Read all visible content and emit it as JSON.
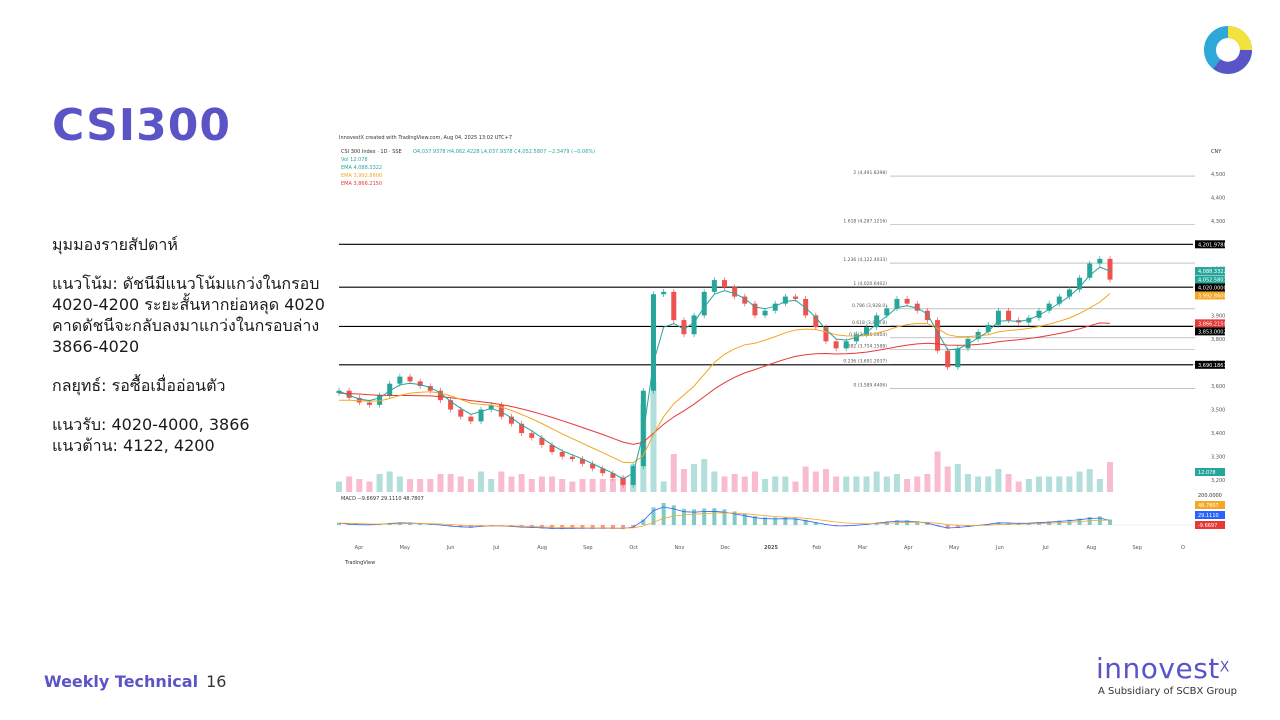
{
  "slide": {
    "title": "CSI300",
    "footer_label": "Weekly Technical",
    "page_number": "16",
    "brand_name": "innovest",
    "brand_sup": "X",
    "brand_sub": "A Subsidiary of SCBX Group"
  },
  "analysis": {
    "heading": "มุมมองรายสัปดาห์",
    "trend": "แนวโน้ม: ดัชนีมีแนวโน้มแกว่งในกรอบ 4020-4200 ระยะสั้นหากย่อหลุด 4020 คาดดัชนีจะกลับลงมาแกว่งในกรอบล่าง 3866-4020",
    "strategy": "กลยุทธ์: รอซื้อเมื่ออ่อนตัว",
    "support": "แนวรับ: 4020-4000, 3866",
    "resistance": "แนวต้าน: 4122, 4200"
  },
  "chart_data": {
    "type": "candlestick",
    "header": "InnovestX created with TradingView.com, Aug 04, 2025 13:02 UTC+7",
    "ohlc_line": "CSI 300 Index · 1D · SSE",
    "ohlc_values": "O4,037.9378 H4,062.4228 L4,037.9378 C4,052.5807 −2.3479 (−0.06%)",
    "indicators": [
      "Vol  12.078",
      "EMA  4,088.3322",
      "EMA  3,992.8600",
      "EMA  3,866.2150"
    ],
    "currency": "CNY",
    "watermark": "TradingView",
    "x_ticks": [
      "Apr",
      "May",
      "Jun",
      "Jul",
      "Aug",
      "Sep",
      "Oct",
      "Nov",
      "Dec",
      "2025",
      "Feb",
      "Mar",
      "Apr",
      "May",
      "Jun",
      "Jul",
      "Aug",
      "Sep",
      "O"
    ],
    "y_ticks": [
      4500,
      4400,
      4300,
      4200,
      4100,
      4000,
      3900,
      3800,
      3700,
      3600,
      3500,
      3400,
      3300,
      3200
    ],
    "ylim": [
      3150,
      4560
    ],
    "price_tags": [
      {
        "value": 4201.9788,
        "label": "4,201.9788",
        "color": "#000000"
      },
      {
        "value": 4088.3322,
        "label": "4,088.3322",
        "color": "#26a69a"
      },
      {
        "value": 4052.5807,
        "label": "4,052.5807",
        "color": "#26a69a"
      },
      {
        "value": 4020.0,
        "label": "4,020.0000",
        "color": "#000000"
      },
      {
        "value": 3992.86,
        "label": "3,992.8600",
        "color": "#f5a623"
      },
      {
        "value": 3866.215,
        "label": "3,866.2150",
        "color": "#e53935"
      },
      {
        "value": 3853.0,
        "label": "3,853.0002",
        "color": "#000000"
      },
      {
        "value": 3690.1861,
        "label": "3,690.1861",
        "color": "#000000"
      }
    ],
    "horizontal_levels": [
      4201.9788,
      4020.0,
      3853.0002,
      3690.1861
    ],
    "fibonacci": [
      {
        "ratio": "2 (4,491.8398)",
        "value": 4491.8398
      },
      {
        "ratio": "1.618 (4,287.1216)",
        "value": 4287.1216
      },
      {
        "ratio": "1.236 (4,122.4033)",
        "value": 4122.4033
      },
      {
        "ratio": "1 (4,020.6402)",
        "value": 4020.6402
      },
      {
        "ratio": "0.786 (3,928.0)",
        "value": 3928.0
      },
      {
        "ratio": "0.618 (3,855.8)",
        "value": 3855.8
      },
      {
        "ratio": "0.5 (3,805.0404)",
        "value": 3805.0404
      },
      {
        "ratio": "0.382 (3,754.1588)",
        "value": 3754.1588
      },
      {
        "ratio": "0.236 (3,691.2037)",
        "value": 3691.2037
      },
      {
        "ratio": "0 (3,589.4406)",
        "value": 3589.4406
      }
    ],
    "close_path": [
      3580,
      3550,
      3530,
      3520,
      3560,
      3610,
      3640,
      3620,
      3600,
      3580,
      3540,
      3500,
      3470,
      3450,
      3500,
      3520,
      3470,
      3440,
      3400,
      3380,
      3350,
      3320,
      3300,
      3290,
      3270,
      3250,
      3230,
      3210,
      3180,
      3260,
      3580,
      3990,
      4000,
      3880,
      3820,
      3900,
      4000,
      4050,
      4020,
      3980,
      3950,
      3900,
      3920,
      3950,
      3980,
      3970,
      3900,
      3850,
      3790,
      3760,
      3790,
      3820,
      3850,
      3900,
      3930,
      3970,
      3950,
      3920,
      3880,
      3750,
      3680,
      3760,
      3800,
      3830,
      3860,
      3920,
      3880,
      3870,
      3890,
      3920,
      3950,
      3980,
      4010,
      4060,
      4120,
      4140,
      4052
    ],
    "ema_fast": [
      3580,
      3560,
      3545,
      3538,
      3550,
      3580,
      3605,
      3612,
      3606,
      3594,
      3570,
      3535,
      3505,
      3480,
      3492,
      3505,
      3490,
      3465,
      3435,
      3410,
      3380,
      3350,
      3325,
      3308,
      3290,
      3270,
      3250,
      3230,
      3205,
      3230,
      3400,
      3700,
      3850,
      3865,
      3842,
      3870,
      3935,
      3990,
      4005,
      3993,
      3972,
      3936,
      3928,
      3939,
      3959,
      3964,
      3932,
      3891,
      3840,
      3800,
      3795,
      3807,
      3828,
      3864,
      3897,
      3933,
      3941,
      3931,
      3906,
      3828,
      3754,
      3757,
      3778,
      3804,
      3832,
      3876,
      3878,
      3874,
      3882,
      3901,
      3925,
      3952,
      3981,
      4020,
      4070,
      4105,
      4088
    ],
    "ema_mid": [
      3540,
      3540,
      3538,
      3535,
      3537,
      3547,
      3560,
      3570,
      3574,
      3576,
      3570,
      3558,
      3543,
      3527,
      3522,
      3519,
      3510,
      3496,
      3479,
      3461,
      3441,
      3419,
      3397,
      3377,
      3357,
      3337,
      3317,
      3297,
      3276,
      3274,
      3305,
      3395,
      3470,
      3525,
      3562,
      3600,
      3650,
      3700,
      3735,
      3758,
      3775,
      3782,
      3795,
      3810,
      3826,
      3838,
      3842,
      3840,
      3830,
      3818,
      3813,
      3812,
      3815,
      3825,
      3836,
      3851,
      3861,
      3866,
      3865,
      3845,
      3818,
      3810,
      3810,
      3813,
      3818,
      3830,
      3836,
      3839,
      3845,
      3853,
      3863,
      3875,
      3889,
      3908,
      3932,
      3957,
      3993
    ],
    "ema_slow": [
      3570,
      3568,
      3566,
      3563,
      3561,
      3560,
      3560,
      3560,
      3559,
      3558,
      3555,
      3550,
      3545,
      3538,
      3533,
      3528,
      3521,
      3513,
      3503,
      3492,
      3480,
      3467,
      3453,
      3439,
      3424,
      3409,
      3394,
      3378,
      3362,
      3352,
      3361,
      3400,
      3437,
      3469,
      3495,
      3523,
      3555,
      3587,
      3614,
      3637,
      3656,
      3670,
      3685,
      3700,
      3714,
      3726,
      3733,
      3737,
      3738,
      3736,
      3737,
      3740,
      3744,
      3751,
      3758,
      3767,
      3774,
      3779,
      3782,
      3779,
      3774,
      3773,
      3774,
      3777,
      3781,
      3788,
      3793,
      3797,
      3802,
      3808,
      3815,
      3823,
      3832,
      3843,
      3856,
      3868,
      3866
    ],
    "macd_labels": [
      "MACD  −9.6697  29.1110  48.7807"
    ],
    "macd_tags": [
      {
        "label": "200.0000",
        "color": "#ffffff"
      },
      {
        "label": "48.7807",
        "color": "#f5a623"
      },
      {
        "label": "29.1110",
        "color": "#2962ff"
      },
      {
        "label": "-9.6697",
        "color": "#e53935"
      }
    ],
    "volume_tag": "12.078"
  }
}
